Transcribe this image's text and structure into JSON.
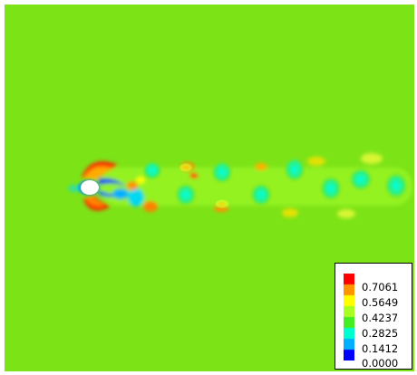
{
  "chart_data": {
    "type": "heatmap",
    "colormap": [
      "#0000ff",
      "#00b0ff",
      "#00ffd0",
      "#44ee22",
      "#a8ff20",
      "#ffff00",
      "#ff9600",
      "#ff0000"
    ],
    "background_color": "#7ce317",
    "obstacle_color": "#ffffff",
    "value_range": [
      0.0,
      0.85
    ],
    "legend": {
      "placement": "bottom-right",
      "labels": [
        "0.7061",
        "0.5649",
        "0.4237",
        "0.2825",
        "0.1412",
        "0.0000"
      ]
    }
  }
}
